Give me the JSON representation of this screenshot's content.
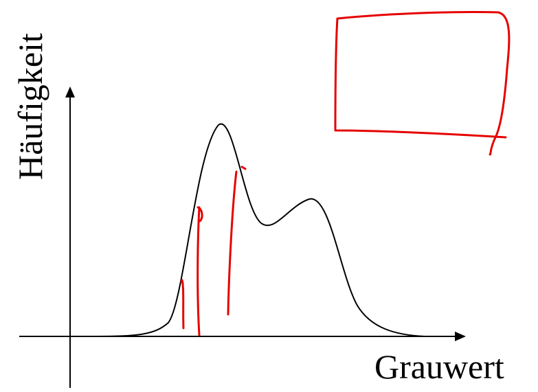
{
  "diagram": {
    "y_axis_label": "Häufigkeit",
    "x_axis_label": "Grauwert",
    "colors": {
      "axis": "#000000",
      "curve": "#000000",
      "annotation": "#e60000"
    },
    "curve_type": "bimodal histogram curve",
    "annotations": [
      "hand-drawn red rectangle",
      "hand-drawn red threshold strokes"
    ]
  }
}
